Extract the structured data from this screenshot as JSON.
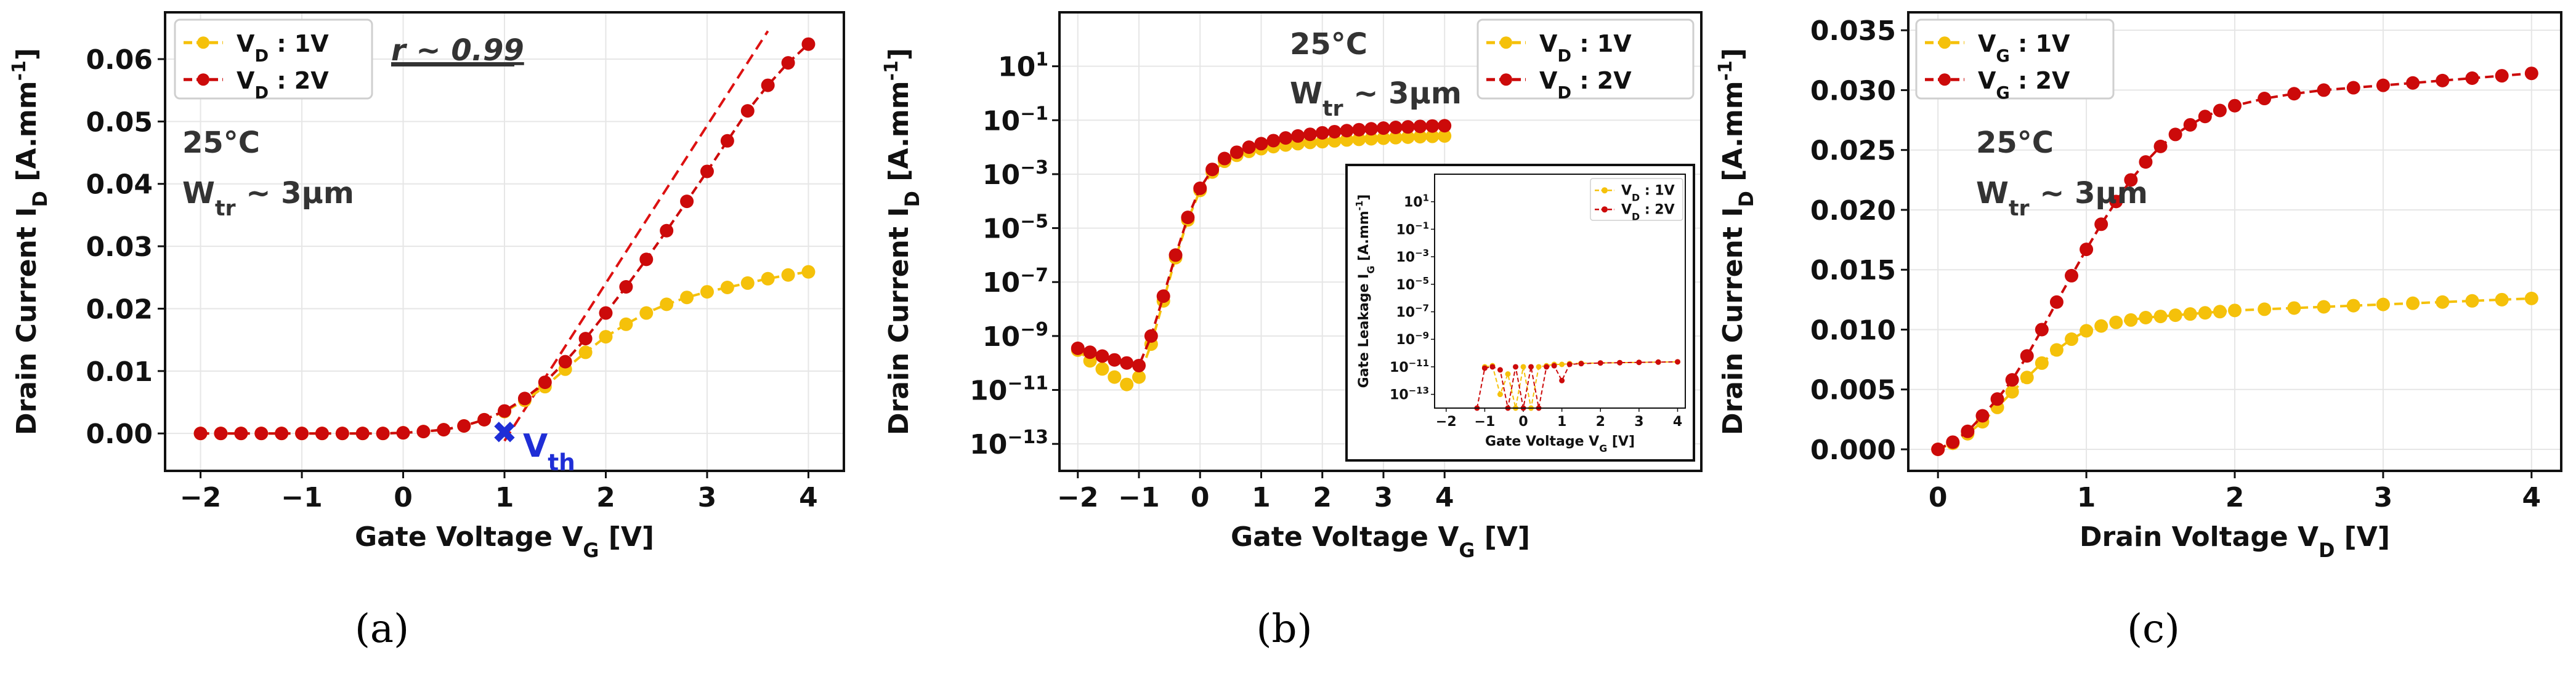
{
  "colors": {
    "series_1v": "#f5c10a",
    "series_2v": "#cc0a0a",
    "vth_marker": "#1f2ed6",
    "fit_line": "#dd1111",
    "grid": "#e6e6e6",
    "axis": "#111111"
  },
  "captions": [
    "(a)",
    "(b)",
    "(c)"
  ],
  "chart_data": [
    {
      "type": "line",
      "title": "",
      "xlabel": "Gate Voltage  V",
      "xlabel_sub": "G",
      "xlabel_unit": " [V]",
      "ylabel": "Drain Current  I",
      "ylabel_sub": "D",
      "ylabel_unit": " [A.mm",
      "ylabel_sup": "-1",
      "ylabel_close": "]",
      "xlim": [
        -2.35,
        4.35
      ],
      "ylim": [
        -0.006,
        0.0675
      ],
      "x_ticks": [
        -2,
        -1,
        0,
        1,
        2,
        3,
        4
      ],
      "x_tick_labels": [
        "−2",
        "−1",
        "0",
        "1",
        "2",
        "3",
        "4"
      ],
      "y_ticks": [
        0.0,
        0.01,
        0.02,
        0.03,
        0.04,
        0.05,
        0.06
      ],
      "y_tick_labels": [
        "0.00",
        "0.01",
        "0.02",
        "0.03",
        "0.04",
        "0.05",
        "0.06"
      ],
      "grid": true,
      "legend_position": "top-left",
      "series": [
        {
          "name_main": "V",
          "name_sub": "D",
          "name_rest": " : 1V",
          "color": "#f5c10a",
          "x": [
            -2.0,
            -1.8,
            -1.6,
            -1.4,
            -1.2,
            -1.0,
            -0.8,
            -0.6,
            -0.4,
            -0.2,
            0.0,
            0.2,
            0.4,
            0.6,
            0.8,
            1.0,
            1.2,
            1.4,
            1.6,
            1.8,
            2.0,
            2.2,
            2.4,
            2.6,
            2.8,
            3.0,
            3.2,
            3.4,
            3.6,
            3.8,
            4.0
          ],
          "values": [
            0,
            0,
            0,
            0,
            0,
            0,
            0,
            0,
            0,
            0,
            0.0001,
            0.0003,
            0.0006,
            0.0012,
            0.0022,
            0.0035,
            0.0053,
            0.0075,
            0.0103,
            0.013,
            0.0155,
            0.0175,
            0.0193,
            0.0207,
            0.0218,
            0.0227,
            0.0234,
            0.0241,
            0.0248,
            0.0254,
            0.0259
          ]
        },
        {
          "name_main": "V",
          "name_sub": "D",
          "name_rest": " : 2V",
          "color": "#cc0a0a",
          "x": [
            -2.0,
            -1.8,
            -1.6,
            -1.4,
            -1.2,
            -1.0,
            -0.8,
            -0.6,
            -0.4,
            -0.2,
            0.0,
            0.2,
            0.4,
            0.6,
            0.8,
            1.0,
            1.2,
            1.4,
            1.6,
            1.8,
            2.0,
            2.2,
            2.4,
            2.6,
            2.8,
            3.0,
            3.2,
            3.4,
            3.6,
            3.8,
            4.0
          ],
          "values": [
            0,
            0,
            0,
            0,
            0,
            0,
            0,
            0,
            0,
            0,
            0.0001,
            0.0003,
            0.0006,
            0.0012,
            0.0022,
            0.0036,
            0.0056,
            0.0082,
            0.0115,
            0.0152,
            0.0193,
            0.0235,
            0.0279,
            0.0325,
            0.0372,
            0.042,
            0.0469,
            0.0517,
            0.0558,
            0.0594,
            0.0624
          ]
        }
      ],
      "fit_line": {
        "x": [
          1.0,
          3.6
        ],
        "y": [
          -0.0012,
          0.0645
        ]
      },
      "vth": {
        "x": 1.0,
        "y": 0.0,
        "label": "V",
        "label_sub": "th"
      },
      "corr_label": "r ~ 0.99",
      "temp_label": "25°C",
      "width_label_main": "W",
      "width_label_sub": "tr",
      "width_label_rest": " ~ 3µm"
    },
    {
      "type": "line",
      "title": "",
      "y_scale": "log",
      "xlabel": "Gate Voltage  V",
      "xlabel_sub": "G",
      "xlabel_unit": " [V]",
      "ylabel": "Drain Current  I",
      "ylabel_sub": "D",
      "ylabel_unit": " [A.mm",
      "ylabel_sup": "-1",
      "ylabel_close": "]",
      "xlim": [
        -2.3,
        8.2
      ],
      "ylim_log10": [
        -14,
        3
      ],
      "x_ticks": [
        -2,
        -1,
        0,
        1,
        2,
        3,
        4
      ],
      "x_tick_labels": [
        "−2",
        "−1",
        "0",
        "1",
        "2",
        "3",
        "4"
      ],
      "y_ticks_exp": [
        1,
        -1,
        -3,
        -5,
        -7,
        -9,
        -11,
        -13
      ],
      "y_tick_base": "10",
      "y_tick_exps": [
        "1",
        "−1",
        "−3",
        "−5",
        "−7",
        "−9",
        "−11",
        "−13"
      ],
      "grid": true,
      "legend_position": "top-right",
      "series": [
        {
          "name_main": "V",
          "name_sub": "D",
          "name_rest": " : 1V",
          "color": "#f5c10a",
          "x": [
            -2.0,
            -1.8,
            -1.6,
            -1.4,
            -1.2,
            -1.0,
            -0.8,
            -0.6,
            -0.4,
            -0.2,
            0.0,
            0.2,
            0.4,
            0.6,
            0.8,
            1.0,
            1.2,
            1.4,
            1.6,
            1.8,
            2.0,
            2.2,
            2.4,
            2.6,
            2.8,
            3.0,
            3.2,
            3.4,
            3.6,
            3.8,
            4.0
          ],
          "values": [
            3e-10,
            1.2e-10,
            6e-11,
            3e-11,
            1.6e-11,
            3e-11,
            5e-10,
            2e-08,
            8e-07,
            2e-05,
            0.00025,
            0.0012,
            0.003,
            0.005,
            0.007,
            0.0088,
            0.0105,
            0.012,
            0.0135,
            0.015,
            0.016,
            0.0172,
            0.0185,
            0.0195,
            0.0205,
            0.0215,
            0.0225,
            0.0235,
            0.0245,
            0.0252,
            0.026
          ]
        },
        {
          "name_main": "V",
          "name_sub": "D",
          "name_rest": " : 2V",
          "color": "#cc0a0a",
          "x": [
            -2.0,
            -1.8,
            -1.6,
            -1.4,
            -1.2,
            -1.0,
            -0.8,
            -0.6,
            -0.4,
            -0.2,
            0.0,
            0.2,
            0.4,
            0.6,
            0.8,
            1.0,
            1.2,
            1.4,
            1.6,
            1.8,
            2.0,
            2.2,
            2.4,
            2.6,
            2.8,
            3.0,
            3.2,
            3.4,
            3.6,
            3.8,
            4.0
          ],
          "values": [
            3.5e-10,
            2.5e-10,
            1.8e-10,
            1.3e-10,
            1e-10,
            8e-11,
            1e-09,
            3e-08,
            1e-06,
            2.5e-05,
            0.0003,
            0.0015,
            0.0038,
            0.0065,
            0.01,
            0.0135,
            0.0175,
            0.022,
            0.026,
            0.03,
            0.034,
            0.0375,
            0.041,
            0.0445,
            0.048,
            0.051,
            0.054,
            0.0565,
            0.059,
            0.061,
            0.0625
          ]
        }
      ],
      "temp_label": "25°C",
      "width_label_main": "W",
      "width_label_sub": "tr",
      "width_label_rest": " ~ 3µm",
      "inset": {
        "type": "line",
        "y_scale": "log",
        "xlabel": "Gate Voltage  V",
        "xlabel_sub": "G",
        "xlabel_unit": " [V]",
        "ylabel": "Gate Leakage  I",
        "ylabel_sub": "G",
        "ylabel_unit": " [A.mm",
        "ylabel_sup": "-1",
        "ylabel_close": "]",
        "xlim": [
          -2.3,
          4.2
        ],
        "ylim_log10": [
          -14,
          3
        ],
        "x_ticks": [
          -2,
          -1,
          0,
          1,
          2,
          3,
          4
        ],
        "x_tick_labels": [
          "−2",
          "−1",
          "0",
          "1",
          "2",
          "3",
          "4"
        ],
        "y_ticks_exp": [
          1,
          -1,
          -3,
          -5,
          -7,
          -9,
          -11,
          -13
        ],
        "y_tick_base": "10",
        "y_tick_exps": [
          "1",
          "−1",
          "−3",
          "−5",
          "−7",
          "−9",
          "−11",
          "−13"
        ],
        "legend_position": "top-right",
        "series": [
          {
            "name_main": "V",
            "name_sub": "D",
            "name_rest": " : 1V",
            "color": "#f5c10a",
            "x": [
              -1.0,
              -0.8,
              -0.6,
              -0.4,
              -0.2,
              0.0,
              0.2,
              0.4,
              0.6,
              0.8,
              1.0,
              1.2,
              1.5,
              2.0,
              2.5,
              3.0,
              3.5,
              4.0
            ],
            "values": [
              1e-11,
              1.2e-11,
              1e-13,
              3e-12,
              1e-14,
              1e-11,
              1e-14,
              1e-11,
              1.2e-11,
              1.5e-11,
              1.5e-11,
              1.7e-11,
              1.8e-11,
              1.9e-11,
              2e-11,
              2.1e-11,
              2.2e-11,
              2.3e-11
            ]
          },
          {
            "name_main": "V",
            "name_sub": "D",
            "name_rest": " : 2V",
            "color": "#cc0a0a",
            "x": [
              -1.2,
              -1.0,
              -0.8,
              -0.6,
              -0.4,
              -0.2,
              0.0,
              0.2,
              0.4,
              0.6,
              0.8,
              1.0,
              1.2,
              1.5,
              2.0,
              2.5,
              3.0,
              3.5,
              4.0
            ],
            "values": [
              1e-14,
              8e-12,
              1e-11,
              6e-12,
              1e-14,
              1e-11,
              1e-14,
              1e-11,
              1e-14,
              1e-11,
              1.2e-11,
              1e-12,
              1.5e-11,
              1.7e-11,
              1.9e-11,
              2e-11,
              2.1e-11,
              2.2e-11,
              2.3e-11
            ]
          }
        ]
      }
    },
    {
      "type": "line",
      "title": "",
      "xlabel": "Drain Voltage  V",
      "xlabel_sub": "D",
      "xlabel_unit": " [V]",
      "ylabel": "Drain Current  I",
      "ylabel_sub": "D",
      "ylabel_unit": " [A.mm",
      "ylabel_sup": "-1",
      "ylabel_close": "]",
      "xlim": [
        -0.2,
        4.2
      ],
      "ylim": [
        -0.0018,
        0.0365
      ],
      "x_ticks": [
        0,
        1,
        2,
        3,
        4
      ],
      "x_tick_labels": [
        "0",
        "1",
        "2",
        "3",
        "4"
      ],
      "y_ticks": [
        0.0,
        0.005,
        0.01,
        0.015,
        0.02,
        0.025,
        0.03,
        0.035
      ],
      "y_tick_labels": [
        "0.000",
        "0.005",
        "0.010",
        "0.015",
        "0.020",
        "0.025",
        "0.030",
        "0.035"
      ],
      "grid": true,
      "legend_position": "top-left",
      "series": [
        {
          "name_main": "V",
          "name_sub": "G",
          "name_rest": " : 1V",
          "color": "#f5c10a",
          "x": [
            0.0,
            0.1,
            0.2,
            0.3,
            0.4,
            0.5,
            0.6,
            0.7,
            0.8,
            0.9,
            1.0,
            1.1,
            1.2,
            1.3,
            1.4,
            1.5,
            1.6,
            1.7,
            1.8,
            1.9,
            2.0,
            2.2,
            2.4,
            2.6,
            2.8,
            3.0,
            3.2,
            3.4,
            3.6,
            3.8,
            4.0
          ],
          "values": [
            0,
            0.0005,
            0.0013,
            0.0023,
            0.0035,
            0.0048,
            0.006,
            0.0072,
            0.0083,
            0.0092,
            0.0099,
            0.0103,
            0.0106,
            0.0108,
            0.011,
            0.0111,
            0.0112,
            0.0113,
            0.0114,
            0.0115,
            0.0116,
            0.0117,
            0.0118,
            0.0119,
            0.012,
            0.0121,
            0.0122,
            0.0123,
            0.0124,
            0.0125,
            0.0126
          ]
        },
        {
          "name_main": "V",
          "name_sub": "G",
          "name_rest": " : 2V",
          "color": "#cc0a0a",
          "x": [
            0.0,
            0.1,
            0.2,
            0.3,
            0.4,
            0.5,
            0.6,
            0.7,
            0.8,
            0.9,
            1.0,
            1.1,
            1.2,
            1.3,
            1.4,
            1.5,
            1.6,
            1.7,
            1.8,
            1.9,
            2.0,
            2.2,
            2.4,
            2.6,
            2.8,
            3.0,
            3.2,
            3.4,
            3.6,
            3.8,
            4.0
          ],
          "values": [
            0,
            0.0006,
            0.0015,
            0.0028,
            0.0042,
            0.0058,
            0.0078,
            0.01,
            0.0123,
            0.0145,
            0.0167,
            0.0188,
            0.0207,
            0.0225,
            0.024,
            0.0253,
            0.0263,
            0.0271,
            0.0278,
            0.0283,
            0.0287,
            0.0293,
            0.0297,
            0.03,
            0.0302,
            0.0304,
            0.0306,
            0.0308,
            0.031,
            0.0312,
            0.0314
          ]
        }
      ],
      "temp_label": "25°C",
      "width_label_main": "W",
      "width_label_sub": "tr",
      "width_label_rest": " ~ 3µm"
    }
  ]
}
